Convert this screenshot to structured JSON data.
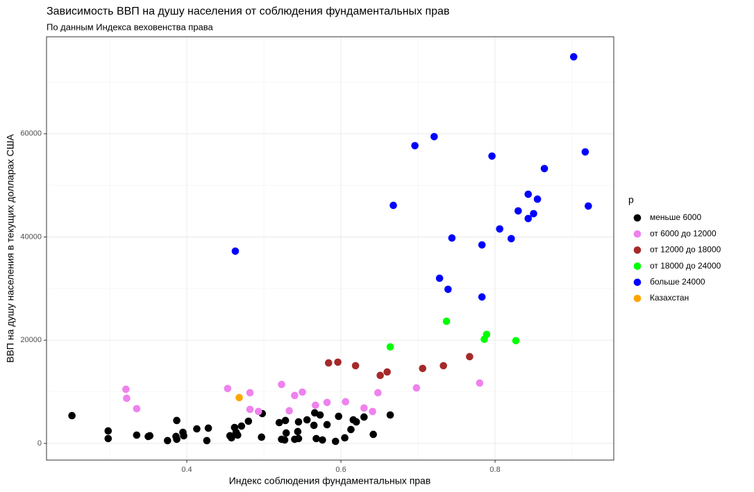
{
  "chart_data": {
    "type": "scatter",
    "title": "Зависимость ВВП на душу населения от соблюдения фундаментальных прав",
    "subtitle": "По данным Индекса веховенства права",
    "x_label": "Индекс соблюдения фундаментальных прав",
    "y_label": "ВВП на душу населения в текущих долларах США",
    "legend_title": "p",
    "legend_position": "right",
    "grid": true,
    "xlim": [
      0.218,
      0.954
    ],
    "ylim": [
      -3230,
      78800
    ],
    "xticks": [
      0.4,
      0.6,
      0.8
    ],
    "yticks": [
      0,
      20000,
      40000,
      60000
    ],
    "series": [
      {
        "name": "меньше 6000",
        "color": "#000000",
        "x": [
          0.251,
          0.298,
          0.298,
          0.335,
          0.35,
          0.352,
          0.375,
          0.386,
          0.387,
          0.387,
          0.395,
          0.396,
          0.413,
          0.426,
          0.428,
          0.456,
          0.458,
          0.462,
          0.464,
          0.466,
          0.471,
          0.48,
          0.497,
          0.498,
          0.52,
          0.523,
          0.527,
          0.528,
          0.529,
          0.54,
          0.544,
          0.545,
          0.545,
          0.556,
          0.565,
          0.566,
          0.568,
          0.573,
          0.576,
          0.582,
          0.593,
          0.597,
          0.605,
          0.613,
          0.616,
          0.62,
          0.63,
          0.642,
          0.664
        ],
        "values": [
          5380,
          2420,
          940,
          1610,
          1350,
          1480,
          540,
          1350,
          4440,
          800,
          2150,
          1480,
          2820,
          540,
          2960,
          1480,
          1080,
          3090,
          2150,
          1610,
          3360,
          4300,
          1210,
          5780,
          4030,
          800,
          670,
          4440,
          2020,
          800,
          2290,
          940,
          4170,
          4570,
          3500,
          5920,
          940,
          5510,
          670,
          3630,
          400,
          5250,
          1080,
          2690,
          4570,
          4170,
          5110,
          1750,
          5510
        ]
      },
      {
        "name": "от 6000 до 12000",
        "color": "#ee82ee",
        "x": [
          0.321,
          0.322,
          0.335,
          0.453,
          0.482,
          0.482,
          0.493,
          0.523,
          0.533,
          0.54,
          0.55,
          0.567,
          0.582,
          0.606,
          0.63,
          0.641,
          0.648,
          0.698,
          0.78
        ],
        "values": [
          10490,
          8740,
          6730,
          10630,
          9820,
          6590,
          6190,
          11430,
          6320,
          9280,
          9950,
          7400,
          7940,
          8070,
          6860,
          6190,
          9820,
          10760,
          11700
        ]
      },
      {
        "name": "от 12000 до 18000",
        "color": "#a52a2a",
        "x": [
          0.584,
          0.596,
          0.619,
          0.651,
          0.66,
          0.706,
          0.733,
          0.767
        ],
        "values": [
          15600,
          15740,
          15060,
          13180,
          13850,
          14530,
          15060,
          16810
        ]
      },
      {
        "name": "от 18000 до 24000",
        "color": "#00ff00",
        "x": [
          0.664,
          0.737,
          0.786,
          0.789,
          0.827
        ],
        "values": [
          18700,
          23670,
          20180,
          21120,
          19910
        ]
      },
      {
        "name": "больше 24000",
        "color": "#0000ff",
        "x": [
          0.463,
          0.668,
          0.696,
          0.721,
          0.728,
          0.739,
          0.744,
          0.783,
          0.783,
          0.796,
          0.806,
          0.821,
          0.83,
          0.843,
          0.843,
          0.85,
          0.855,
          0.864,
          0.902,
          0.917,
          0.921
        ],
        "values": [
          37260,
          46130,
          57700,
          59450,
          32010,
          29860,
          39810,
          38470,
          28380,
          55680,
          41560,
          39680,
          45060,
          48290,
          43580,
          44520,
          47340,
          53260,
          74920,
          56490,
          46000
        ]
      },
      {
        "name": "Казахстан",
        "color": "#ffa500",
        "x": [
          0.468
        ],
        "values": [
          8880
        ]
      }
    ]
  }
}
